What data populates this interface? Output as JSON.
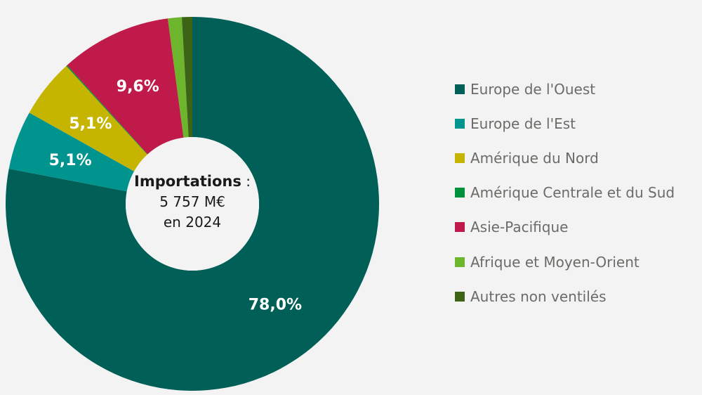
{
  "chart_data": {
    "type": "pie",
    "donut": true,
    "center_text": {
      "title": "Importations",
      "separator": " :",
      "value": "5 757 M€",
      "year": "en 2024"
    },
    "legend_position": "right",
    "slices": [
      {
        "name": "Europe de l'Ouest",
        "value": 78.0,
        "label": "78,0%",
        "color": "#005f57"
      },
      {
        "name": "Europe de l'Est",
        "value": 5.1,
        "label": "5,1%",
        "color": "#00948f"
      },
      {
        "name": "Amérique du Nord",
        "value": 5.1,
        "label": "5,1%",
        "color": "#c5b400"
      },
      {
        "name": "Amérique Centrale et du Sud",
        "value": 0.1,
        "label": "",
        "color": "#00913d"
      },
      {
        "name": "Asie-Pacifique",
        "value": 9.6,
        "label": "9,6%",
        "color": "#c01a4a"
      },
      {
        "name": "Afrique et Moyen-Orient",
        "value": 1.2,
        "label": "",
        "color": "#6cb52d"
      },
      {
        "name": "Autres non ventilés",
        "value": 0.9,
        "label": "",
        "color": "#3d6416"
      }
    ]
  }
}
